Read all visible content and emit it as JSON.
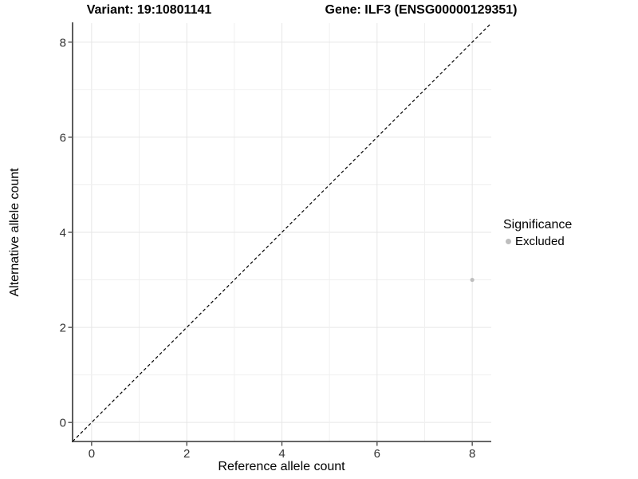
{
  "chart_data": {
    "type": "scatter",
    "title_left": "Variant: 19:10801141",
    "title_right": "Gene: ILF3 (ENSG00000129351)",
    "xlabel": "Reference allele count",
    "ylabel": "Alternative allele count",
    "xlim": [
      -0.4,
      8.4
    ],
    "ylim": [
      -0.4,
      8.4
    ],
    "xticks": [
      0,
      2,
      4,
      6,
      8
    ],
    "yticks": [
      0,
      2,
      4,
      6,
      8
    ],
    "grid": "on",
    "grid_step": 1,
    "identity_line": {
      "from": [
        -0.4,
        -0.4
      ],
      "to": [
        8.4,
        8.4
      ],
      "style": "dashed",
      "color": "#000000"
    },
    "series": [
      {
        "name": "Excluded",
        "color": "#bebebe",
        "points": [
          {
            "x": 8,
            "y": 3
          }
        ]
      }
    ],
    "legend": {
      "title": "Significance",
      "position": "right",
      "items": [
        {
          "label": "Excluded",
          "color": "#bebebe"
        }
      ]
    },
    "colors": {
      "background": "#ffffff",
      "grid_major": "#e6e6e6",
      "grid_minor": "#f0f0f0",
      "axis": "#333333",
      "point": "#bebebe"
    }
  }
}
